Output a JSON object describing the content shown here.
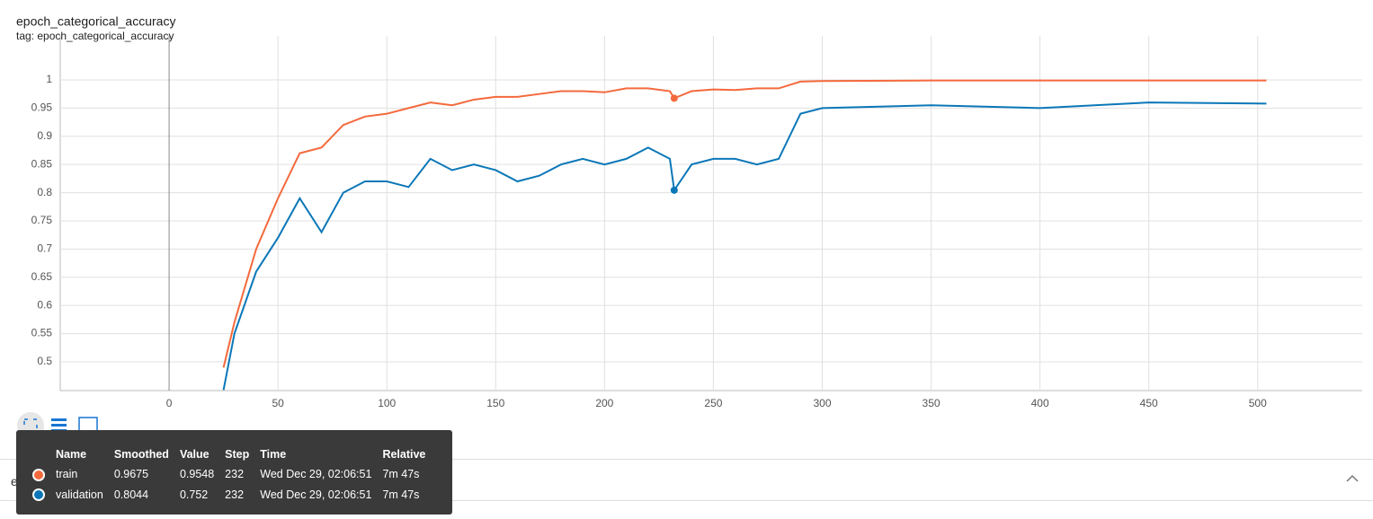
{
  "chart_data": {
    "type": "line",
    "title": "epoch_categorical_accuracy",
    "subtitle": "tag: epoch_categorical_accuracy",
    "x": [
      25,
      30,
      40,
      50,
      60,
      70,
      80,
      90,
      100,
      110,
      120,
      130,
      140,
      150,
      160,
      170,
      180,
      190,
      200,
      210,
      220,
      230,
      232,
      240,
      250,
      260,
      270,
      280,
      290,
      300,
      350,
      400,
      450,
      504
    ],
    "series": [
      {
        "name": "train",
        "color": "#f4693c",
        "values": [
          0.49,
          0.57,
          0.7,
          0.79,
          0.87,
          0.88,
          0.92,
          0.935,
          0.94,
          0.95,
          0.96,
          0.955,
          0.965,
          0.97,
          0.97,
          0.975,
          0.98,
          0.98,
          0.978,
          0.985,
          0.985,
          0.98,
          0.9675,
          0.98,
          0.983,
          0.982,
          0.985,
          0.985,
          0.997,
          0.998,
          0.999,
          0.999,
          0.999,
          0.999
        ]
      },
      {
        "name": "validation",
        "color": "#0b77b8",
        "values": [
          0.45,
          0.55,
          0.66,
          0.72,
          0.79,
          0.73,
          0.8,
          0.82,
          0.82,
          0.81,
          0.86,
          0.84,
          0.85,
          0.84,
          0.82,
          0.83,
          0.85,
          0.86,
          0.85,
          0.86,
          0.88,
          0.86,
          0.8044,
          0.85,
          0.86,
          0.86,
          0.85,
          0.86,
          0.94,
          0.95,
          0.955,
          0.95,
          0.96,
          0.958
        ]
      }
    ],
    "xlim": [
      -50,
      548
    ],
    "xticks": [
      0,
      50,
      100,
      150,
      200,
      250,
      300,
      350,
      400,
      450,
      500
    ],
    "ylim": [
      0.449,
      1.078
    ],
    "yticks": [
      0.5,
      0.55,
      0.6,
      0.65,
      0.7,
      0.75,
      0.8,
      0.85,
      0.9,
      0.95,
      1
    ],
    "grid": true
  },
  "tooltip": {
    "columns": [
      "Name",
      "Smoothed",
      "Value",
      "Step",
      "Time",
      "Relative"
    ],
    "rows": [
      [
        "train",
        0.9675,
        0.9548,
        232,
        "Wed Dec 29, 02:06:51",
        "7m 47s"
      ],
      [
        "validation",
        0.8044,
        0.752,
        232,
        "Wed Dec 29, 02:06:51",
        "7m 47s"
      ]
    ]
  },
  "next_card_title": "epoch_loss"
}
